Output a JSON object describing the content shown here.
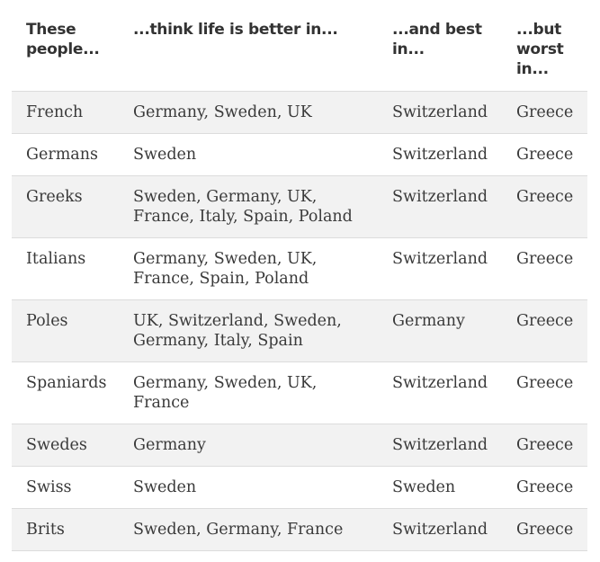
{
  "headers": {
    "people": "These people...",
    "better": "...think life is better in...",
    "best": "...and best in...",
    "worst": "...but worst in..."
  },
  "rows": [
    {
      "people": "French",
      "better": "Germany, Sweden, UK",
      "best": "Switzerland",
      "worst": "Greece"
    },
    {
      "people": "Germans",
      "better": "Sweden",
      "best": "Switzerland",
      "worst": "Greece"
    },
    {
      "people": "Greeks",
      "better": "Sweden, Germany, UK, France, Italy, Spain, Poland",
      "best": "Switzerland",
      "worst": "Greece"
    },
    {
      "people": "Italians",
      "better": "Germany, Sweden, UK, France, Spain, Poland",
      "best": "Switzerland",
      "worst": "Greece"
    },
    {
      "people": "Poles",
      "better": "UK, Switzerland, Sweden, Germany, Italy, Spain",
      "best": "Germany",
      "worst": "Greece"
    },
    {
      "people": "Spaniards",
      "better": "Germany, Sweden, UK, France",
      "best": "Switzerland",
      "worst": "Greece"
    },
    {
      "people": "Swedes",
      "better": "Germany",
      "best": "Switzerland",
      "worst": "Greece"
    },
    {
      "people": "Swiss",
      "better": "Sweden",
      "best": "Sweden",
      "worst": "Greece"
    },
    {
      "people": "Brits",
      "better": "Sweden, Germany, France",
      "best": "Switzerland",
      "worst": "Greece"
    }
  ]
}
